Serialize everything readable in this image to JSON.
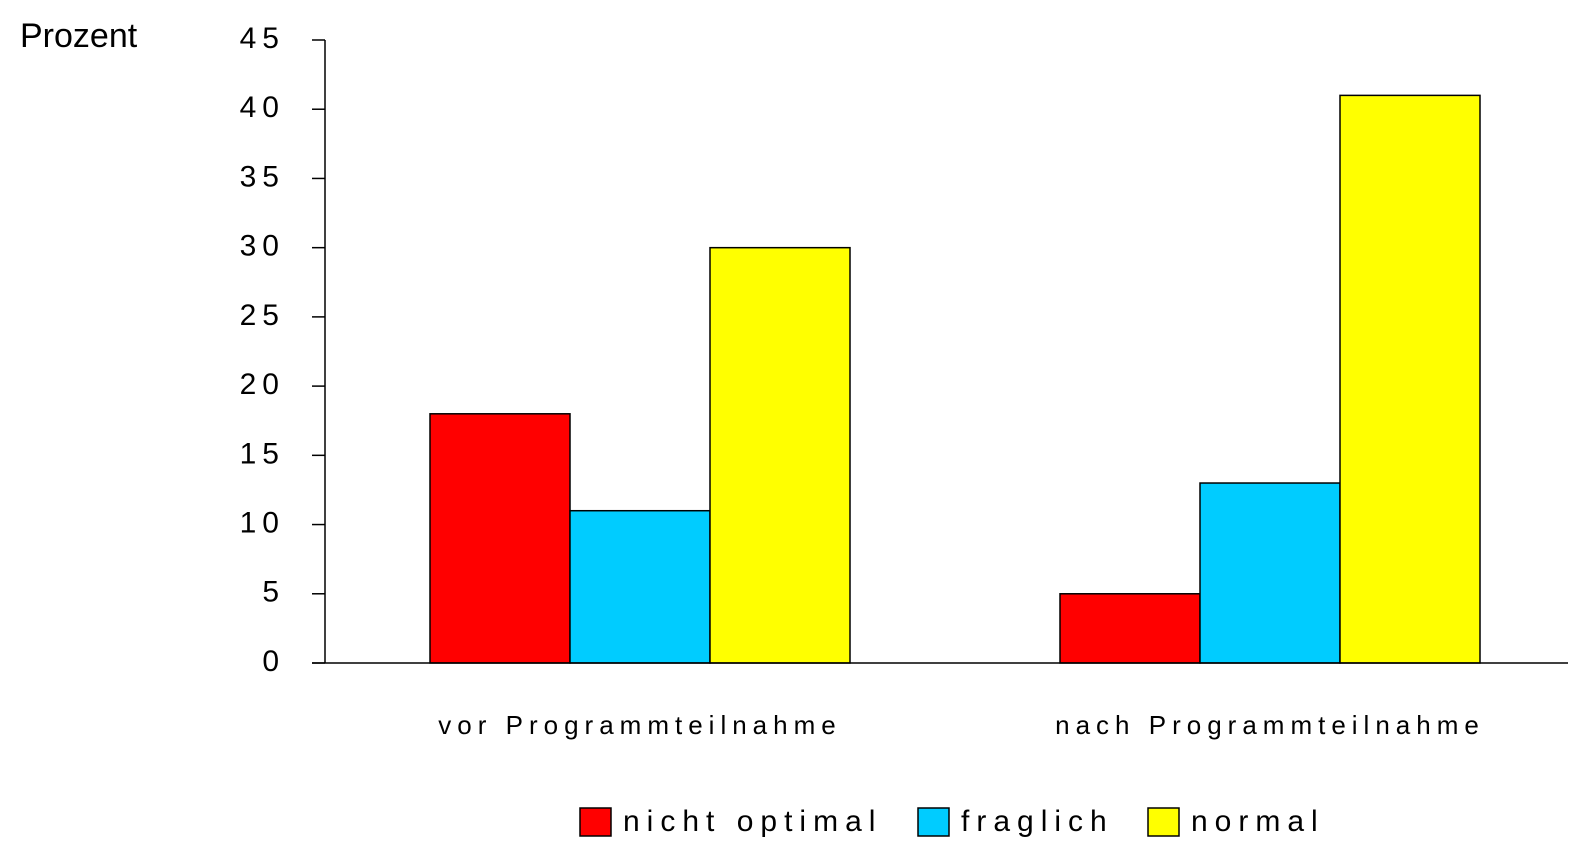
{
  "chart_data": {
    "type": "bar",
    "y_label": "Prozent",
    "categories": [
      "vor Programmteilnahme",
      "nach Programmteilnahme"
    ],
    "series": [
      {
        "name": "nicht optimal",
        "color": "#ff0000",
        "values": [
          18,
          5
        ]
      },
      {
        "name": "fraglich",
        "color": "#00ccff",
        "values": [
          11,
          13
        ]
      },
      {
        "name": "normal",
        "color": "#ffff00",
        "values": [
          30,
          41
        ]
      }
    ],
    "ylim": [
      0,
      45
    ],
    "yticks": [
      0,
      5,
      10,
      15,
      20,
      25,
      30,
      35,
      40,
      45
    ],
    "legend": "bottom"
  }
}
